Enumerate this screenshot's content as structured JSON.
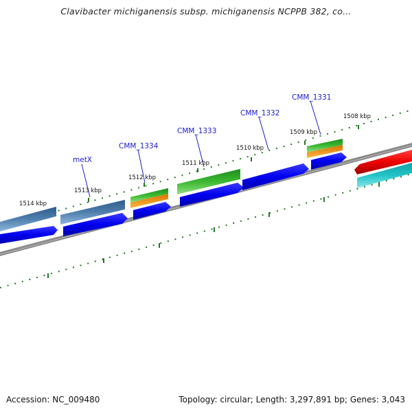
{
  "title": "Clavibacter michiganensis subsp. michiganensis NCPPB 382, co...",
  "footer": {
    "accession": "Accession: NC_009480",
    "topology": "Topology: circular; Length: 3,297,891 bp; Genes: 3,043"
  },
  "colors": {
    "backbone": "#8a8a8a",
    "tick": "#227722",
    "gene_label": "#1a1acc",
    "cds_forward_blue": "#0000ee",
    "steelblue_feature": "#4f7fae",
    "green_feature": "#3cb832",
    "orange_feature": "#f59a14",
    "red_feature": "#ee0000",
    "cyan_feature": "#22c4c8"
  },
  "kbp_labels": [
    "1514 kbp",
    "1513 kbp",
    "1512 kbp",
    "1511 kbp",
    "1510 kbp",
    "1509 kbp",
    "1508 kbp"
  ],
  "gene_labels": [
    "metX",
    "CMM_1334",
    "CMM_1333",
    "CMM_1332",
    "CMM_1331"
  ]
}
